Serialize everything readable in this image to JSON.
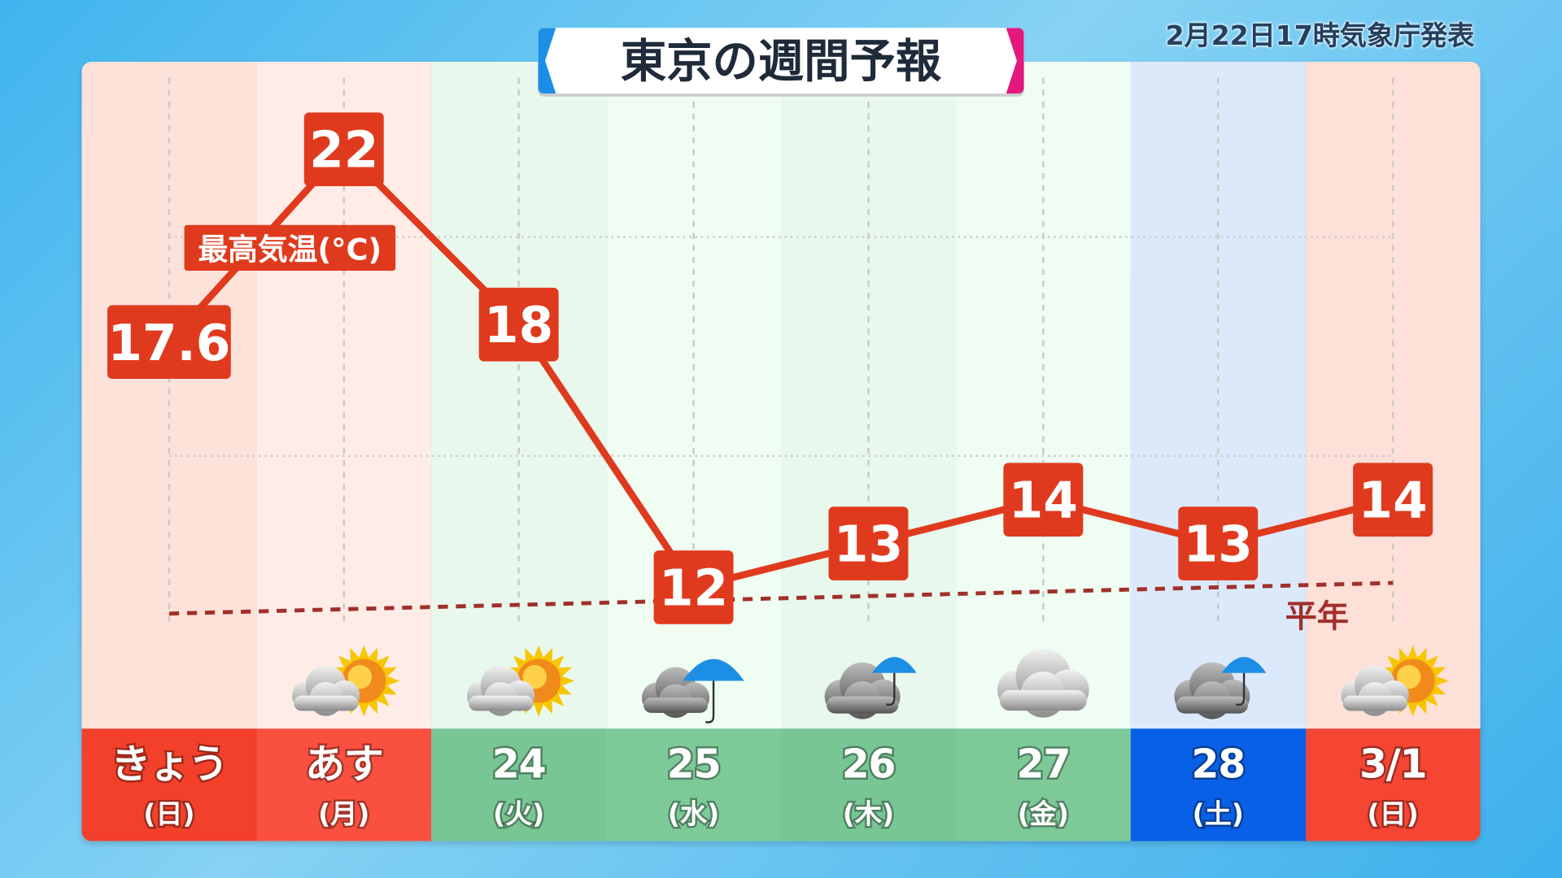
{
  "title": "東京の週間予報",
  "issued": "2月22日17時気象庁発表",
  "colors": {
    "line": "#e03a1e",
    "normal": "#a0302a",
    "label_bg": "#e03a1e"
  },
  "chart_data": {
    "type": "line",
    "series_label": "最高気温(°C)",
    "normal_label": "平年",
    "categories": [
      "きょう",
      "あす",
      "24",
      "25",
      "26",
      "27",
      "28",
      "3/1"
    ],
    "weekdays": [
      "(日)",
      "(月)",
      "(火)",
      "(水)",
      "(木)",
      "(金)",
      "(土)",
      "(日)"
    ],
    "values": [
      17.6,
      22,
      18,
      12,
      13,
      14,
      13,
      14
    ],
    "value_labels": [
      "17.6",
      "22",
      "18",
      "12",
      "13",
      "14",
      "13",
      "14"
    ],
    "normal": {
      "from": 11.4,
      "to": 12.1
    },
    "weather": [
      "",
      "sun-cloud",
      "sun-cloud",
      "rain",
      "cloud-rain",
      "cloud",
      "cloud-rain",
      "sun-cloud"
    ],
    "ylim": [
      10,
      23.5
    ],
    "grid": true
  },
  "day_colors": {
    "bg": [
      "#fde2da",
      "#ffece6",
      "#e8f8ec",
      "#effdf2",
      "#e8f8ec",
      "#effdf2",
      "#dce9fb",
      "#fde0d8"
    ],
    "bar": [
      "#f2402b",
      "#fa5040",
      "#78c694",
      "#7dca98",
      "#78c694",
      "#7dca98",
      "#0860e6",
      "#f54533"
    ]
  }
}
